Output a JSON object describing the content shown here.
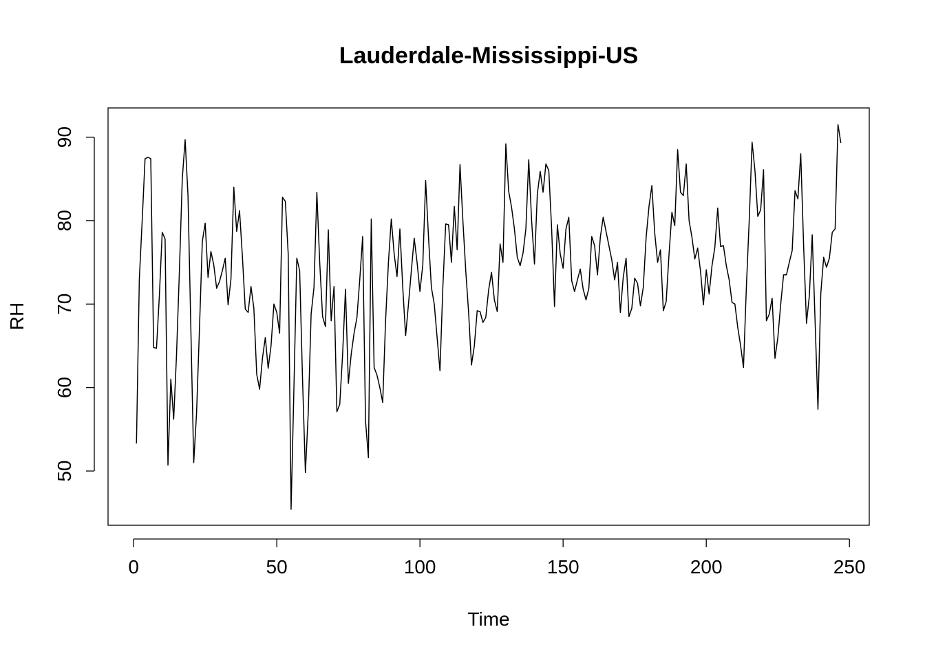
{
  "chart_data": {
    "type": "line",
    "title": "Lauderdale-Mississippi-US",
    "xlabel": "Time",
    "ylabel": "RH",
    "xlim": [
      -8.92,
      256.92
    ],
    "ylim": [
      43.5,
      93.5
    ],
    "xticks": [
      0,
      50,
      100,
      150,
      200,
      250
    ],
    "yticks": [
      50,
      60,
      70,
      80,
      90
    ],
    "x_start": 1,
    "series": [
      {
        "values": [
          53.3,
          73.0,
          80.0,
          87.4,
          87.6,
          87.4,
          64.8,
          64.7,
          71.0,
          78.6,
          77.8,
          50.7,
          61.0,
          56.2,
          64.0,
          74.0,
          85.0,
          89.7,
          83.0,
          67.0,
          51.0,
          57.0,
          67.0,
          77.5,
          79.7,
          73.2,
          76.3,
          74.7,
          71.9,
          72.7,
          74.0,
          75.5,
          69.9,
          73.0,
          84.0,
          78.7,
          81.2,
          75.7,
          69.4,
          69.0,
          72.1,
          69.5,
          61.6,
          59.8,
          63.5,
          66.0,
          62.3,
          65.0,
          70.0,
          69.0,
          66.5,
          82.8,
          82.3,
          76.0,
          45.4,
          60.0,
          75.5,
          74.0,
          61.0,
          49.8,
          57.0,
          68.8,
          72.0,
          83.4,
          75.0,
          68.5,
          67.3,
          78.9,
          68.0,
          72.1,
          57.1,
          58.0,
          64.0,
          71.8,
          60.5,
          64.0,
          66.5,
          68.4,
          73.0,
          78.1,
          56.0,
          51.6,
          80.2,
          62.4,
          61.5,
          60.0,
          58.2,
          68.0,
          75.0,
          80.2,
          76.0,
          73.3,
          79.0,
          72.0,
          66.2,
          70.0,
          74.0,
          77.9,
          75.0,
          71.5,
          74.7,
          84.8,
          78.0,
          72.0,
          70.0,
          66.0,
          62.0,
          72.0,
          79.6,
          79.5,
          75.0,
          81.7,
          76.5,
          86.7,
          80.0,
          74.0,
          69.0,
          62.7,
          65.0,
          69.2,
          69.1,
          67.8,
          68.4,
          71.7,
          73.8,
          70.5,
          69.1,
          77.2,
          75.0,
          89.2,
          83.5,
          81.6,
          79.0,
          75.6,
          74.6,
          76.1,
          79.0,
          87.3,
          80.0,
          74.8,
          83.2,
          85.9,
          83.4,
          86.8,
          86.0,
          79.0,
          69.7,
          79.5,
          76.0,
          74.3,
          79.0,
          80.4,
          72.8,
          71.5,
          72.9,
          74.2,
          71.8,
          70.5,
          71.9,
          78.1,
          77.0,
          73.5,
          78.0,
          80.4,
          78.7,
          77.0,
          75.3,
          72.9,
          75.0,
          69.0,
          73.2,
          75.5,
          68.5,
          69.5,
          73.1,
          72.5,
          69.8,
          72.0,
          78.0,
          81.7,
          84.2,
          78.5,
          75.0,
          76.5,
          69.2,
          70.3,
          76.0,
          81.0,
          79.4,
          88.5,
          83.4,
          83.0,
          86.8,
          80.0,
          78.0,
          75.4,
          76.7,
          73.9,
          69.9,
          74.1,
          71.2,
          74.6,
          76.8,
          81.5,
          76.9,
          77.0,
          74.6,
          72.9,
          70.2,
          70.0,
          67.2,
          65.0,
          62.4,
          72.0,
          80.0,
          89.4,
          86.0,
          80.5,
          81.3,
          86.1,
          68.0,
          68.8,
          70.7,
          63.5,
          66.0,
          70.0,
          73.5,
          73.5,
          75.0,
          76.4,
          83.6,
          82.6,
          88.0,
          77.0,
          67.7,
          71.0,
          78.3,
          68.0,
          57.4,
          71.3,
          75.6,
          74.4,
          75.5,
          78.6,
          79.0,
          91.5,
          89.3
        ]
      }
    ]
  }
}
